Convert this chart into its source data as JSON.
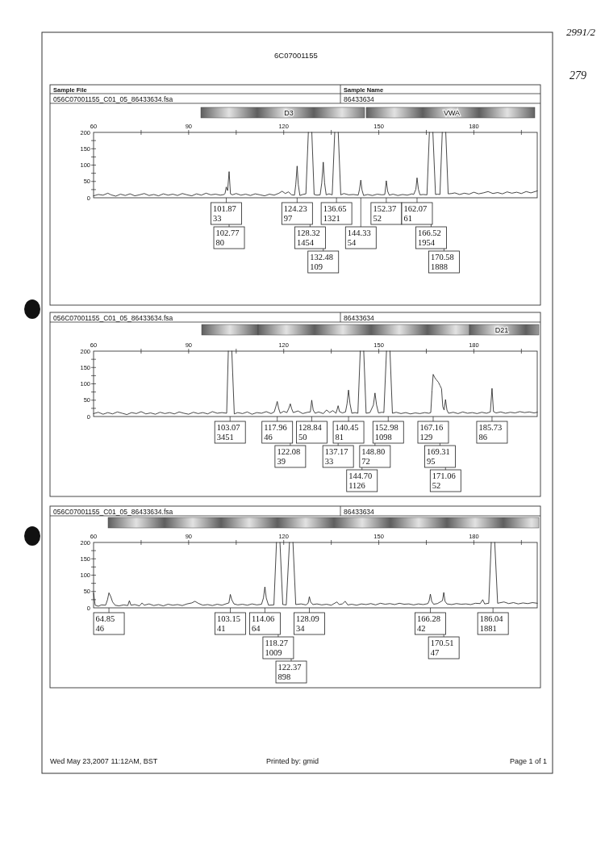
{
  "chart_data": [
    {
      "type": "line",
      "title": "056C07001155_C01_05_86433634.fsa",
      "subtitle": "86433634",
      "color": "#1a1a1a",
      "x": [
        60,
        61.5,
        63,
        64.5,
        65.5,
        67,
        68.5,
        70,
        71.5,
        73,
        74.5,
        76,
        77.5,
        79,
        80.5,
        82,
        83.5,
        85,
        86.5,
        88,
        89.5,
        91,
        92.5,
        94,
        95.5,
        97,
        98.5,
        100,
        101.2,
        101.5,
        101.87,
        102.3,
        102.77,
        103.2,
        103.8,
        105,
        106.5,
        108,
        109.5,
        111,
        112.5,
        114,
        115.5,
        117,
        118.5,
        119.5,
        120.5,
        121.5,
        122.5,
        123.4,
        123.8,
        124.23,
        124.6,
        125.1,
        126,
        127,
        127.77,
        128.32,
        128.87,
        129.6,
        130.5,
        131.5,
        132,
        132.48,
        132.9,
        133.4,
        134.3,
        135.3,
        136.1,
        136.65,
        137.2,
        138,
        139,
        140.5,
        142,
        143.5,
        143.9,
        144.33,
        144.7,
        145.2,
        146.5,
        148,
        149.5,
        151,
        151.9,
        152.37,
        152.8,
        153.3,
        154.5,
        156,
        157.5,
        159,
        160.5,
        161,
        161.7,
        162.07,
        162.5,
        163,
        164,
        165.2,
        165.97,
        166.52,
        167.07,
        167.9,
        168.6,
        169.3,
        170.03,
        170.58,
        171.13,
        171.9,
        173,
        174,
        175.5,
        177,
        178.5,
        180,
        181.5,
        183,
        184.5,
        186,
        187.5,
        189,
        190.5,
        192,
        193.5,
        195,
        196.5,
        198,
        200
      ],
      "values": [
        6,
        10,
        8,
        14,
        9,
        5,
        11,
        7,
        12,
        6,
        9,
        13,
        7,
        10,
        6,
        12,
        8,
        11,
        7,
        13,
        9,
        6,
        12,
        8,
        14,
        9,
        11,
        8,
        10,
        14,
        33,
        22,
        80,
        12,
        9,
        13,
        8,
        11,
        7,
        12,
        9,
        6,
        11,
        8,
        14,
        20,
        13,
        18,
        9,
        8,
        40,
        97,
        40,
        7,
        10,
        12,
        200,
        null,
        200,
        10,
        8,
        9,
        45,
        109,
        45,
        9,
        12,
        9,
        200,
        null,
        200,
        9,
        13,
        9,
        10,
        8,
        25,
        54,
        24,
        7,
        10,
        7,
        11,
        9,
        10,
        52,
        20,
        8,
        11,
        7,
        10,
        8,
        12,
        10,
        26,
        61,
        26,
        9,
        10,
        9,
        200,
        null,
        200,
        10,
        11,
        10,
        200,
        null,
        200,
        12,
        13,
        15,
        10,
        14,
        11,
        17,
        12,
        15,
        19,
        13,
        16,
        12,
        18,
        14,
        17,
        13,
        19,
        15,
        21
      ],
      "xlim": [
        60,
        200
      ],
      "xticks": [
        60,
        {
          "value": 75,
          "label": null
        },
        90,
        {
          "value": 105,
          "label": null
        },
        120,
        {
          "value": 135,
          "label": null
        },
        150,
        {
          "value": 165,
          "label": null
        },
        180,
        {
          "value": 195,
          "label": null
        }
      ],
      "ylim": [
        0,
        200
      ],
      "yticks": [
        0,
        {
          "value": 25,
          "label": null
        },
        50,
        {
          "value": 75,
          "label": null
        },
        100,
        {
          "value": 125,
          "label": null
        },
        150,
        {
          "value": 175,
          "label": null
        },
        200
      ],
      "annotations": [
        "6C07001155",
        "Sample File",
        "Sample Name",
        "2991/2",
        "279",
        "D3",
        "VWA",
        {
          "text": "101.87\n33",
          "x": 101.87
        },
        {
          "text": "102.77\n80",
          "x": 102.77
        },
        {
          "text": "124.23\n97",
          "x": 124.23
        },
        {
          "text": "128.32\n1454",
          "x": 128.32
        },
        {
          "text": "132.48\n109",
          "x": 132.48
        },
        {
          "text": "136.65\n1321",
          "x": 136.65
        },
        {
          "text": "144.33\n54",
          "x": 144.33
        },
        {
          "text": "152.37\n52",
          "x": 152.37
        },
        {
          "text": "162.07\n61",
          "x": 162.07
        },
        {
          "text": "166.52\n1954",
          "x": 166.52
        },
        {
          "text": "170.58\n1888",
          "x": 170.58
        }
      ]
    },
    {
      "type": "line",
      "title": "056C07001155_C01_05_86433634.fsa",
      "subtitle": "86433634",
      "color": "#1a1a1a",
      "x": [
        60,
        61.5,
        63,
        64.5,
        66,
        67.5,
        69,
        70.5,
        72,
        73.5,
        75,
        76.5,
        78,
        79.5,
        81,
        82.5,
        84,
        85.5,
        87,
        88.5,
        90,
        91.5,
        93,
        94.5,
        96,
        97.5,
        99,
        100.5,
        102,
        102.52,
        103.07,
        103.62,
        104.4,
        105.5,
        107,
        108.5,
        110,
        111.5,
        113,
        114.5,
        116,
        117,
        117.5,
        117.96,
        118.4,
        118.9,
        120,
        121,
        121.6,
        122.08,
        122.5,
        123,
        124.5,
        126,
        127.5,
        128.4,
        128.84,
        129.3,
        129.9,
        131,
        132.5,
        133.5,
        134.5,
        135.5,
        136.5,
        136.8,
        137.17,
        137.6,
        138.5,
        139.5,
        140,
        140.45,
        140.9,
        141.5,
        142.5,
        143.4,
        144.15,
        144.7,
        145.25,
        146,
        147.2,
        148.3,
        148.8,
        149.3,
        149.9,
        151,
        151.6,
        152.43,
        152.98,
        153.53,
        154.3,
        155.5,
        157,
        158.5,
        160,
        161.5,
        163,
        164.5,
        165.8,
        166.4,
        166.8,
        167.16,
        167.6,
        168.2,
        168.8,
        169.31,
        169.8,
        170.2,
        170.6,
        171.06,
        171.5,
        172,
        173.5,
        175,
        176.5,
        178,
        179.5,
        181,
        182.5,
        184,
        185.2,
        185.73,
        186.2,
        187,
        188.5,
        190,
        191.5,
        193,
        194.5,
        196,
        197.5,
        199,
        200
      ],
      "values": [
        9,
        13,
        7,
        12,
        8,
        14,
        10,
        6,
        12,
        9,
        15,
        8,
        11,
        7,
        13,
        9,
        12,
        8,
        14,
        10,
        7,
        13,
        9,
        12,
        8,
        15,
        10,
        12,
        10,
        200,
        null,
        200,
        8,
        12,
        9,
        14,
        7,
        12,
        10,
        15,
        9,
        14,
        30,
        46,
        25,
        10,
        16,
        12,
        25,
        39,
        24,
        12,
        17,
        9,
        13,
        14,
        50,
        20,
        10,
        14,
        9,
        20,
        12,
        18,
        10,
        20,
        33,
        15,
        11,
        14,
        40,
        81,
        40,
        10,
        12,
        10,
        200,
        null,
        200,
        10,
        12,
        35,
        72,
        35,
        11,
        13,
        12,
        200,
        null,
        200,
        10,
        13,
        9,
        12,
        8,
        11,
        9,
        12,
        10,
        12,
        80,
        129,
        120,
        112,
        105,
        95,
        85,
        30,
        20,
        52,
        20,
        10,
        13,
        9,
        14,
        10,
        12,
        9,
        13,
        10,
        14,
        86,
        15,
        11,
        14,
        10,
        13,
        11,
        15,
        12,
        14,
        11,
        13
      ],
      "xlim": [
        60,
        200
      ],
      "xticks": [
        60,
        {
          "value": 75,
          "label": null
        },
        90,
        {
          "value": 105,
          "label": null
        },
        120,
        {
          "value": 135,
          "label": null
        },
        150,
        {
          "value": 165,
          "label": null
        },
        180,
        {
          "value": 195,
          "label": null
        }
      ],
      "ylim": [
        0,
        200
      ],
      "yticks": [
        0,
        {
          "value": 25,
          "label": null
        },
        50,
        {
          "value": 75,
          "label": null
        },
        100,
        {
          "value": 125,
          "label": null
        },
        150,
        {
          "value": 175,
          "label": null
        },
        200
      ],
      "annotations": [
        "D21",
        {
          "text": "103.07\n3451",
          "x": 103.07
        },
        {
          "text": "117.96\n46",
          "x": 117.96
        },
        {
          "text": "122.08\n39",
          "x": 122.08
        },
        {
          "text": "128.84\n50",
          "x": 128.84
        },
        {
          "text": "137.17\n33",
          "x": 137.17
        },
        {
          "text": "140.45\n81",
          "x": 140.45
        },
        {
          "text": "144.70\n1126",
          "x": 144.7
        },
        {
          "text": "148.80\n72",
          "x": 148.8
        },
        {
          "text": "152.98\n1098",
          "x": 152.98
        },
        {
          "text": "167.16\n129",
          "x": 167.16
        },
        {
          "text": "169.31\n95",
          "x": 169.31
        },
        {
          "text": "171.06\n52",
          "x": 171.06
        },
        {
          "text": "185.73\n86",
          "x": 185.73
        }
      ]
    },
    {
      "type": "line",
      "title": "056C07001155_C01_05_86433634.fsa",
      "subtitle": "86433634",
      "color": "#1a1a1a",
      "x": [
        60,
        60.5,
        61.5,
        62.5,
        63.8,
        64.4,
        64.85,
        65.4,
        66,
        66.8,
        68,
        69.5,
        70.8,
        71.3,
        71.8,
        73,
        74.5,
        75.3,
        76,
        77.5,
        79,
        80.5,
        82,
        83.5,
        85,
        86.5,
        88,
        89.5,
        91,
        92,
        93,
        94.5,
        96,
        97.5,
        99,
        100.5,
        102,
        102.7,
        103.15,
        103.6,
        104.3,
        105.5,
        107,
        108.5,
        110,
        111.5,
        113,
        113.6,
        114.06,
        114.5,
        115.2,
        116.9,
        117.72,
        118.27,
        118.82,
        119.7,
        120.8,
        121.82,
        122.37,
        122.92,
        123.8,
        125.5,
        127,
        127.7,
        128.09,
        128.5,
        129.2,
        130.5,
        132,
        133.5,
        135,
        136.8,
        137.5,
        138.5,
        139.4,
        140.2,
        141.5,
        143,
        144.5,
        146,
        147.5,
        149,
        150.5,
        152,
        153.5,
        155,
        156.5,
        158,
        159.5,
        161,
        162.5,
        164,
        165.5,
        165.9,
        166.28,
        166.7,
        167.3,
        168.5,
        170.1,
        170.51,
        170.9,
        171.5,
        173,
        174.5,
        176,
        177.5,
        179,
        180.5,
        182,
        182.8,
        183.4,
        184.7,
        185.49,
        186.04,
        186.59,
        187.5,
        189.5,
        191,
        192.5,
        194,
        195.5,
        197,
        198.5,
        200
      ],
      "values": [
        45,
        8,
        5,
        9,
        8,
        25,
        46,
        35,
        18,
        8,
        6,
        9,
        7,
        22,
        8,
        10,
        6,
        15,
        8,
        12,
        7,
        10,
        6,
        11,
        8,
        10,
        7,
        12,
        15,
        20,
        14,
        8,
        10,
        7,
        11,
        8,
        13,
        15,
        41,
        25,
        12,
        9,
        11,
        8,
        12,
        9,
        11,
        30,
        64,
        30,
        8,
        9,
        200,
        null,
        200,
        10,
        9,
        200,
        null,
        200,
        10,
        12,
        9,
        14,
        34,
        18,
        10,
        12,
        9,
        11,
        8,
        18,
        10,
        12,
        20,
        9,
        11,
        8,
        12,
        10,
        13,
        9,
        14,
        11,
        13,
        10,
        14,
        11,
        12,
        9,
        12,
        10,
        13,
        22,
        42,
        20,
        11,
        13,
        22,
        47,
        20,
        12,
        10,
        13,
        11,
        12,
        10,
        14,
        13,
        25,
        12,
        14,
        200,
        null,
        200,
        14,
        18,
        13,
        16,
        12,
        15,
        13,
        16,
        14
      ],
      "xlim": [
        60,
        200
      ],
      "xticks": [
        60,
        {
          "value": 75,
          "label": null
        },
        90,
        {
          "value": 105,
          "label": null
        },
        120,
        {
          "value": 135,
          "label": null
        },
        150,
        {
          "value": 165,
          "label": null
        },
        180,
        {
          "value": 195,
          "label": null
        }
      ],
      "ylim": [
        0,
        200
      ],
      "yticks": [
        0,
        {
          "value": 25,
          "label": null
        },
        50,
        {
          "value": 75,
          "label": null
        },
        100,
        {
          "value": 125,
          "label": null
        },
        150,
        {
          "value": 175,
          "label": null
        },
        200
      ],
      "annotations": [
        "Wed May 23,2007 11:12AM, BST",
        "Printed by: gmid",
        "Page 1 of 1",
        {
          "text": "64.85\n46",
          "x": 64.85
        },
        {
          "text": "103.15\n41",
          "x": 103.15
        },
        {
          "text": "114.06\n64",
          "x": 114.06
        },
        {
          "text": "118.27\n1009",
          "x": 118.27
        },
        {
          "text": "122.37\n898",
          "x": 122.37
        },
        {
          "text": "128.09\n34",
          "x": 128.09
        },
        {
          "text": "166.28\n42",
          "x": 166.28
        },
        {
          "text": "170.51\n47",
          "x": 170.51
        },
        {
          "text": "186.04\n1881",
          "x": 186.04
        }
      ]
    }
  ]
}
